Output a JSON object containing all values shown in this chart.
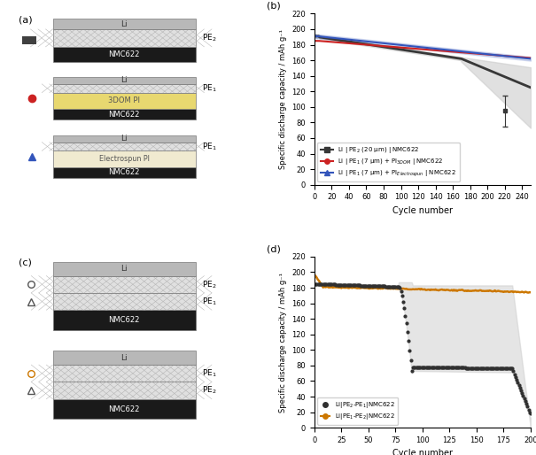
{
  "panel_b": {
    "ylabel": "Specific discharge capacity / mAh g⁻¹",
    "xlabel": "Cycle number",
    "xlim": [
      0,
      250
    ],
    "ylim": [
      0,
      220
    ],
    "xticks": [
      0,
      20,
      40,
      60,
      80,
      100,
      120,
      140,
      160,
      180,
      200,
      220,
      240
    ],
    "yticks": [
      0,
      20,
      40,
      60,
      80,
      100,
      120,
      140,
      160,
      180,
      200,
      220
    ],
    "black_start": 190,
    "black_end": 125,
    "black_band_upper_end": 165,
    "black_band_lower_end": 60,
    "outlier_cycle": 220,
    "outlier_val": 95,
    "outlier_err": 20,
    "red_start": 185,
    "red_end": 163,
    "blue_start": 191,
    "blue_end": 162,
    "black_color": "#383838",
    "red_color": "#cc2222",
    "blue_color": "#3355bb"
  },
  "panel_d": {
    "ylabel": "Specific discharge capacity / mAh g⁻¹",
    "xlabel": "Cycle number",
    "xlim": [
      0,
      200
    ],
    "ylim": [
      0,
      220
    ],
    "xticks": [
      0,
      25,
      50,
      75,
      100,
      125,
      150,
      175,
      200
    ],
    "yticks": [
      0,
      20,
      40,
      60,
      80,
      100,
      120,
      140,
      160,
      180,
      200,
      220
    ],
    "orange_color": "#cc7700",
    "black_color": "#303030"
  },
  "colors": {
    "li_gray": "#b8b8b8",
    "nmc_black": "#1a1a1a",
    "dom_yellow": "#e8d870",
    "electrospun_cream": "#f0ead0",
    "sep_bg": "#e0e0e0",
    "background": "#ffffff"
  }
}
